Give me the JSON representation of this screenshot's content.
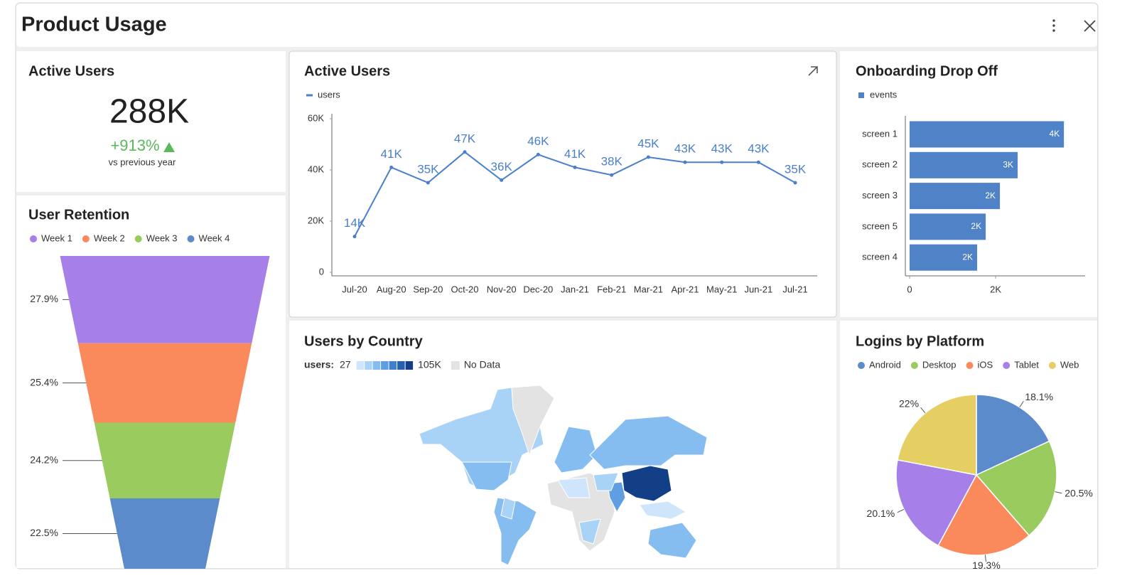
{
  "header": {
    "title": "Product Usage"
  },
  "kpi": {
    "title": "Active Users",
    "value": "288K",
    "change": "+913%",
    "caption": "vs previous year"
  },
  "chart_data": [
    {
      "type": "funnel",
      "title": "User Retention",
      "categories": [
        "Week 1",
        "Week 2",
        "Week 3",
        "Week 4"
      ],
      "values": [
        27.9,
        25.4,
        24.2,
        22.5
      ],
      "value_labels": [
        "27.9%",
        "25.4%",
        "24.2%",
        "22.5%"
      ],
      "colors": [
        "#a77fe8",
        "#fa8a5c",
        "#9acb5e",
        "#5b8bcb"
      ]
    },
    {
      "type": "line",
      "title": "Active Users",
      "categories": [
        "Jul-20",
        "Aug-20",
        "Sep-20",
        "Oct-20",
        "Nov-20",
        "Dec-20",
        "Jan-21",
        "Feb-21",
        "Mar-21",
        "Apr-21",
        "May-21",
        "Jun-21",
        "Jul-21"
      ],
      "series": [
        {
          "name": "users",
          "color": "#4a7fcb",
          "values": [
            14000,
            41000,
            35000,
            47000,
            36000,
            46000,
            41000,
            38000,
            45000,
            43000,
            43000,
            43000,
            35000
          ],
          "value_labels": [
            "14K",
            "41K",
            "35K",
            "47K",
            "36K",
            "46K",
            "41K",
            "38K",
            "45K",
            "43K",
            "43K",
            "43K",
            "35K"
          ]
        }
      ],
      "ylim": [
        0,
        60000
      ],
      "yticks": [
        0,
        {
          "value": 20000,
          "label": "20K"
        },
        {
          "value": 40000,
          "label": "40K"
        },
        {
          "value": 60000,
          "label": "60K"
        }
      ]
    },
    {
      "type": "bar",
      "horizontal": true,
      "title": "Onboarding Drop Off",
      "categories": [
        "screen 1",
        "screen 2",
        "screen 3",
        "screen 5",
        "screen 4"
      ],
      "series": [
        {
          "name": "events",
          "color": "#4f82c6",
          "values": [
            3587,
            2512,
            2099,
            1769,
            1570
          ],
          "value_labels": [
            "4K",
            "3K",
            "2K",
            "2K",
            "2K"
          ]
        }
      ],
      "xlim": [
        0,
        4080
      ],
      "xticks": [
        0,
        {
          "value": 2000,
          "label": "2K"
        }
      ]
    },
    {
      "type": "map",
      "title": "Users by Country",
      "legend_title": "users:",
      "range": [
        27,
        {
          "value": 105000,
          "label": "105K"
        }
      ],
      "colors": [
        "#cfe5fb",
        "#a9d2f7",
        "#86bdf0",
        "#5f9ee3",
        "#3f7fcc",
        "#2660ad",
        "#123f85"
      ],
      "no_data_label": "No Data",
      "no_data_color": "#e3e3e3"
    },
    {
      "type": "pie",
      "title": "Logins by Platform",
      "categories": [
        "Android",
        "Desktop",
        "iOS",
        "Tablet",
        "Web"
      ],
      "values": [
        18.1,
        20.5,
        19.3,
        20.1,
        22
      ],
      "value_labels": [
        "18.1%",
        "20.5%",
        "19.3%",
        "20.1%",
        "22%"
      ],
      "colors": [
        "#5b8bcb",
        "#9acb5e",
        "#fa8a5c",
        "#a77fe8",
        "#e5cf63"
      ]
    }
  ]
}
